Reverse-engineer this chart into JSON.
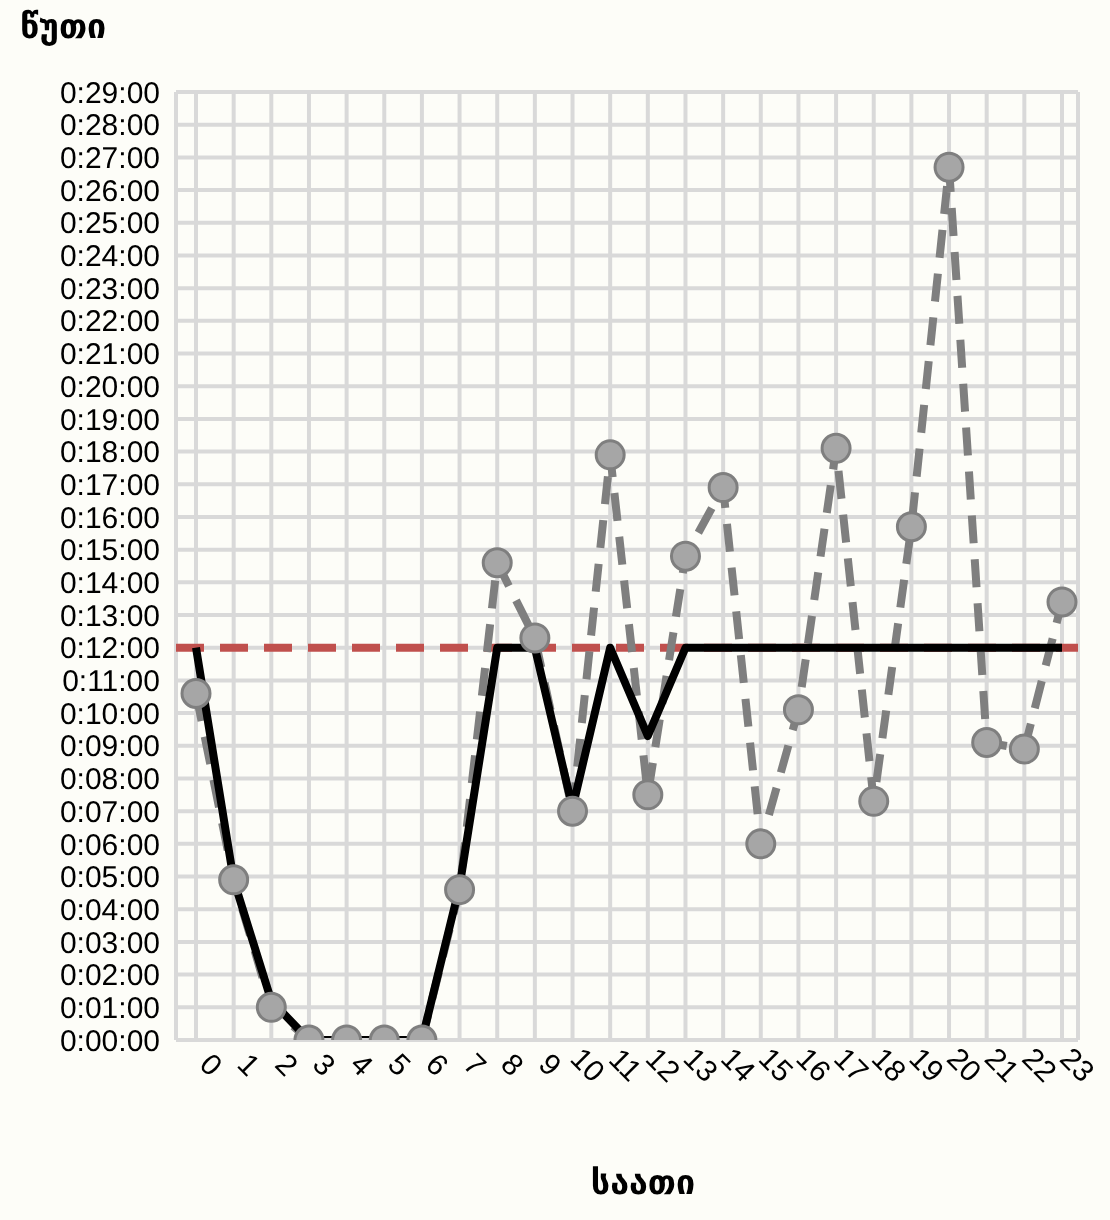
{
  "chart_data": {
    "type": "line",
    "xlabel": "საათი",
    "ylabel": "წუთი",
    "categories": [
      "0",
      "1",
      "2",
      "3",
      "4",
      "5",
      "6",
      "7",
      "8",
      "9",
      "10",
      "11",
      "12",
      "13",
      "14",
      "15",
      "16",
      "17",
      "18",
      "19",
      "20",
      "21",
      "22",
      "23"
    ],
    "series": [
      {
        "color": "#7f7f7f",
        "marker": "circle",
        "line_style": "dashed",
        "values": [
          10.6,
          4.9,
          1,
          0,
          0,
          0,
          0,
          4.6,
          14.6,
          12.3,
          7,
          17.9,
          7.5,
          14.8,
          16.9,
          6,
          10.1,
          18.1,
          7.3,
          15.7,
          26.7,
          9.1,
          8.9,
          13.4
        ]
      },
      {
        "color": "#000000",
        "marker": "none",
        "line_style": "solid",
        "values": [
          12,
          4.9,
          1.2,
          0,
          0,
          0,
          0,
          4.7,
          12,
          12,
          7.1,
          12,
          9.3,
          12,
          12,
          12,
          12,
          12,
          12,
          12,
          12,
          12,
          12,
          12
        ]
      }
    ],
    "ref_lines": [
      {
        "axis": "y",
        "value": 12,
        "color": "#c0504d",
        "line_style": "dashed"
      }
    ],
    "ylim": [
      0,
      29
    ],
    "yticks": [
      {
        "value": 0,
        "label": "0:00:00"
      },
      {
        "value": 1,
        "label": "0:01:00"
      },
      {
        "value": 2,
        "label": "0:02:00"
      },
      {
        "value": 3,
        "label": "0:03:00"
      },
      {
        "value": 4,
        "label": "0:04:00"
      },
      {
        "value": 5,
        "label": "0:05:00"
      },
      {
        "value": 6,
        "label": "0:06:00"
      },
      {
        "value": 7,
        "label": "0:07:00"
      },
      {
        "value": 8,
        "label": "0:08:00"
      },
      {
        "value": 9,
        "label": "0:09:00"
      },
      {
        "value": 10,
        "label": "0:10:00"
      },
      {
        "value": 11,
        "label": "0:11:00"
      },
      {
        "value": 12,
        "label": "0:12:00"
      },
      {
        "value": 13,
        "label": "0:13:00"
      },
      {
        "value": 14,
        "label": "0:14:00"
      },
      {
        "value": 15,
        "label": "0:15:00"
      },
      {
        "value": 16,
        "label": "0:16:00"
      },
      {
        "value": 17,
        "label": "0:17:00"
      },
      {
        "value": 18,
        "label": "0:18:00"
      },
      {
        "value": 19,
        "label": "0:19:00"
      },
      {
        "value": 20,
        "label": "0:20:00"
      },
      {
        "value": 21,
        "label": "0:21:00"
      },
      {
        "value": 22,
        "label": "0:22:00"
      },
      {
        "value": 23,
        "label": "0:23:00"
      },
      {
        "value": 24,
        "label": "0:24:00"
      },
      {
        "value": 25,
        "label": "0:25:00"
      },
      {
        "value": 26,
        "label": "0:26:00"
      },
      {
        "value": 27,
        "label": "0:27:00"
      },
      {
        "value": 28,
        "label": "0:28:00"
      },
      {
        "value": 29,
        "label": "0:29:00"
      }
    ],
    "grid": true,
    "legend": false
  }
}
